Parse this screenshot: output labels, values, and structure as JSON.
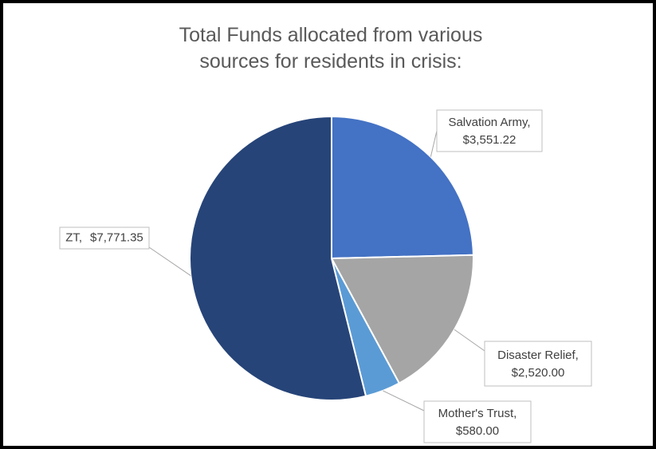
{
  "chart_data": {
    "type": "pie",
    "title": "Total Funds allocated from various sources for residents in crisis:",
    "categories": [
      "Salvation Army,",
      "Disaster Relief,",
      "Mother's Trust,",
      "ZT,"
    ],
    "values": [
      3551.22,
      2520.0,
      580.0,
      7771.35
    ],
    "value_labels": [
      "$3,551.22",
      "$2,520.00",
      "$580.00",
      "$7,771.35"
    ],
    "colors": [
      "#4472c4",
      "#a5a5a5",
      "#5b9bd5",
      "#264478"
    ]
  }
}
